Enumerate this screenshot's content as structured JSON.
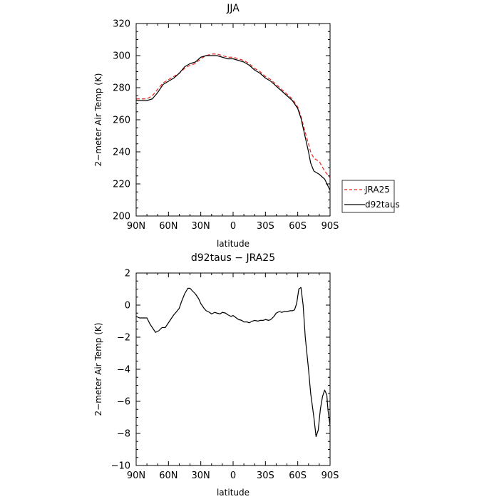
{
  "chart_data": [
    {
      "type": "line",
      "title": "JJA",
      "xlabel": "latitude",
      "ylabel": "2−meter Air Temp (K)",
      "xlim": [
        90,
        -90
      ],
      "ylim": [
        200,
        320
      ],
      "xticks": [
        90,
        60,
        30,
        0,
        -30,
        -60,
        -90
      ],
      "xtick_labels": [
        "90N",
        "60N",
        "30N",
        "0",
        "30S",
        "60S",
        "90S"
      ],
      "yticks": [
        200,
        220,
        240,
        260,
        280,
        300,
        320
      ],
      "ytick_labels": [
        "200",
        "220",
        "240",
        "260",
        "280",
        "300",
        "320"
      ],
      "legend_position": "right",
      "series": [
        {
          "name": "JRA25",
          "color": "#e8251f",
          "dash": "dashed",
          "x": [
            90,
            85,
            80,
            75,
            70,
            65,
            60,
            55,
            50,
            45,
            40,
            35,
            30,
            25,
            20,
            15,
            10,
            5,
            0,
            -5,
            -10,
            -15,
            -20,
            -25,
            -30,
            -35,
            -40,
            -45,
            -50,
            -55,
            -60,
            -63,
            -65,
            -67,
            -70,
            -72,
            -75,
            -80,
            -85,
            -90
          ],
          "y": [
            273,
            273,
            273,
            275,
            279,
            283,
            285,
            287,
            289,
            292,
            294,
            295,
            298,
            300,
            301,
            301,
            300,
            299,
            299,
            298,
            297,
            295,
            292,
            290,
            287,
            285,
            282,
            279,
            276,
            273,
            268,
            262,
            257,
            252,
            245,
            240,
            236,
            234,
            228,
            224
          ]
        },
        {
          "name": "d92taus",
          "color": "#000000",
          "dash": "solid",
          "x": [
            90,
            85,
            80,
            75,
            70,
            65,
            60,
            55,
            50,
            45,
            40,
            35,
            30,
            25,
            20,
            15,
            10,
            5,
            0,
            -5,
            -10,
            -15,
            -20,
            -25,
            -30,
            -35,
            -40,
            -45,
            -50,
            -55,
            -60,
            -63,
            -65,
            -67,
            -70,
            -72,
            -75,
            -80,
            -85,
            -90
          ],
          "y": [
            272,
            272,
            272,
            273,
            277,
            282,
            284,
            286,
            289,
            293,
            295,
            296,
            299,
            300,
            300,
            300,
            299,
            298,
            298,
            297,
            296,
            294,
            291,
            289,
            286,
            284,
            281,
            278,
            275,
            272,
            267,
            261,
            255,
            249,
            240,
            233,
            228,
            226,
            223,
            216
          ]
        }
      ]
    },
    {
      "type": "line",
      "title": "d92taus − JRA25",
      "xlabel": "latitude",
      "ylabel": "2−meter Air Temp (K)",
      "xlim": [
        90,
        -90
      ],
      "ylim": [
        -10,
        2
      ],
      "xticks": [
        90,
        60,
        30,
        0,
        -30,
        -60,
        -90
      ],
      "xtick_labels": [
        "90N",
        "60N",
        "30N",
        "0",
        "30S",
        "60S",
        "90S"
      ],
      "yticks": [
        2,
        0,
        -2,
        -4,
        -6,
        -8,
        -10
      ],
      "ytick_labels": [
        "2",
        "0",
        "−2",
        "−4",
        "−6",
        "−8",
        "−10"
      ],
      "series": [
        {
          "color": "#000000",
          "dash": "solid",
          "x": [
            90,
            87,
            84,
            80,
            77,
            75,
            72,
            69,
            66,
            63,
            60,
            57,
            55,
            53,
            50,
            48,
            45,
            42,
            40,
            38,
            35,
            32,
            30,
            27,
            25,
            22,
            20,
            17,
            15,
            12,
            10,
            7,
            5,
            2,
            0,
            -2,
            -5,
            -8,
            -10,
            -13,
            -15,
            -18,
            -20,
            -23,
            -25,
            -28,
            -30,
            -33,
            -35,
            -38,
            -40,
            -43,
            -45,
            -48,
            -50,
            -53,
            -55,
            -57,
            -59,
            -61,
            -63,
            -65,
            -67,
            -70,
            -72,
            -75,
            -77,
            -79,
            -81,
            -83,
            -85,
            -87,
            -88,
            -90
          ],
          "y": [
            -0.7,
            -0.8,
            -0.8,
            -0.8,
            -1.2,
            -1.4,
            -1.7,
            -1.6,
            -1.4,
            -1.4,
            -1.1,
            -0.8,
            -0.6,
            -0.45,
            -0.2,
            0.2,
            0.7,
            1.05,
            1.05,
            0.9,
            0.7,
            0.4,
            0.1,
            -0.2,
            -0.35,
            -0.45,
            -0.55,
            -0.45,
            -0.5,
            -0.55,
            -0.45,
            -0.5,
            -0.6,
            -0.7,
            -0.65,
            -0.75,
            -0.9,
            -0.95,
            -1.05,
            -1.05,
            -1.1,
            -1.0,
            -0.95,
            -1.0,
            -0.95,
            -0.95,
            -0.9,
            -0.95,
            -0.9,
            -0.7,
            -0.5,
            -0.4,
            -0.45,
            -0.4,
            -0.4,
            -0.35,
            -0.35,
            -0.3,
            0.1,
            1.0,
            1.1,
            0.0,
            -2.0,
            -4.0,
            -5.5,
            -7.0,
            -8.2,
            -7.8,
            -6.5,
            -5.7,
            -5.3,
            -5.6,
            -6.5,
            -7.5
          ]
        }
      ]
    }
  ]
}
